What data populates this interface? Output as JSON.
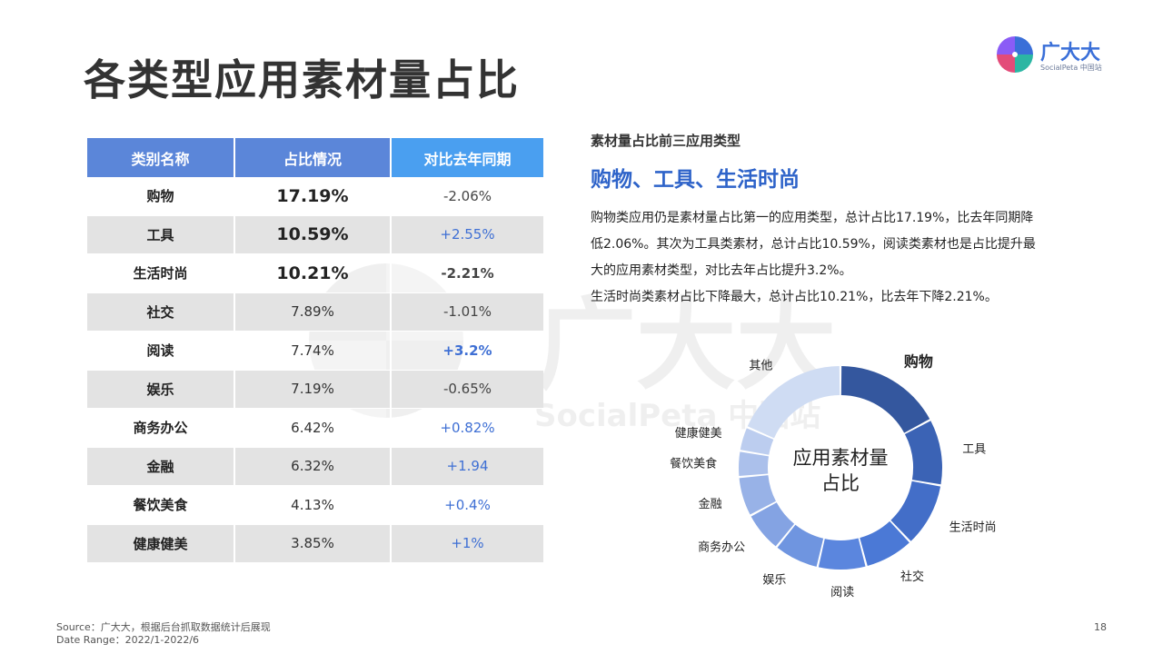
{
  "title": "各类型应用素材量占比",
  "logo": {
    "name": "广大大",
    "sub": "SocialPeta 中国站"
  },
  "watermark": {
    "name": "广大大",
    "sub": "SocialPeta 中国站"
  },
  "table": {
    "headers": [
      "类别名称",
      "占比情况",
      "对比去年同期"
    ],
    "rows": [
      {
        "category": "购物",
        "share": "17.19%",
        "change": "-2.06%"
      },
      {
        "category": "工具",
        "share": "10.59%",
        "change": "+2.55%"
      },
      {
        "category": "生活时尚",
        "share": "10.21%",
        "change": "-2.21%"
      },
      {
        "category": "社交",
        "share": "7.89%",
        "change": "-1.01%"
      },
      {
        "category": "阅读",
        "share": "7.74%",
        "change": "+3.2%"
      },
      {
        "category": "娱乐",
        "share": "7.19%",
        "change": "-0.65%"
      },
      {
        "category": "商务办公",
        "share": "6.42%",
        "change": "+0.82%"
      },
      {
        "category": "金融",
        "share": "6.32%",
        "change": "+1.94"
      },
      {
        "category": "餐饮美食",
        "share": "4.13%",
        "change": "+0.4%"
      },
      {
        "category": "健康健美",
        "share": "3.85%",
        "change": "+1%"
      }
    ]
  },
  "summary": {
    "subtitle": "素材量占比前三应用类型",
    "headline": "购物、工具、生活时尚",
    "lines": [
      "购物类应用仍是素材量占比第一的应用类型，总计占比17.19%，比去年同期降",
      "低2.06%。其次为工具类素材，总计占比10.59%，阅读类素材也是占比提升最",
      "大的应用素材类型，对比去年占比提升3.2%。",
      "生活时尚类素材占比下降最大，总计占比10.21%，比去年下降2.21%。"
    ]
  },
  "chart_data": {
    "type": "pie",
    "title": "应用素材量占比",
    "categories": [
      "购物",
      "工具",
      "生活时尚",
      "社交",
      "阅读",
      "娱乐",
      "商务办公",
      "金融",
      "餐饮美食",
      "健康健美",
      "其他"
    ],
    "values": [
      17.19,
      10.59,
      10.21,
      7.89,
      7.74,
      7.19,
      6.42,
      6.32,
      4.13,
      3.85,
      18.47
    ],
    "colors": [
      "#34579e",
      "#3b63b5",
      "#436ec8",
      "#4b79d6",
      "#5b86de",
      "#6f95e0",
      "#84a3e3",
      "#98b2e7",
      "#abc0eb",
      "#bccdef",
      "#cfdcf3"
    ],
    "center_label": [
      "应用素材量",
      "占比"
    ]
  },
  "footer": {
    "source": "Source：广大大，根据后台抓取数据统计后展现",
    "date_range": "Date Range：2022/1-2022/6",
    "page": "18"
  }
}
